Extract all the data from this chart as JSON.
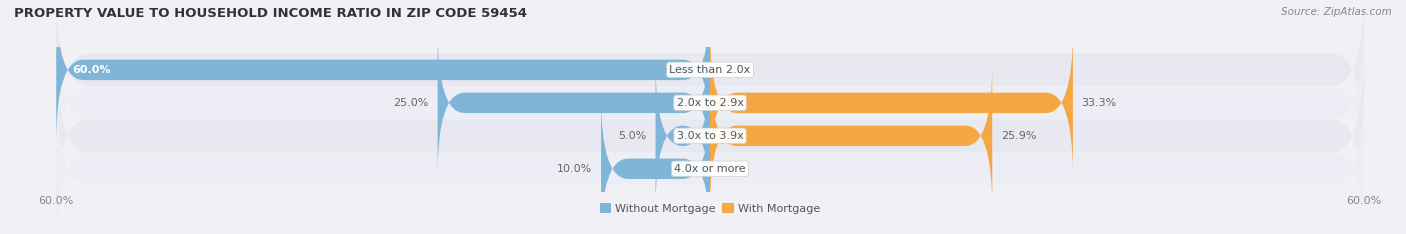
{
  "title": "PROPERTY VALUE TO HOUSEHOLD INCOME RATIO IN ZIP CODE 59454",
  "source": "Source: ZipAtlas.com",
  "categories": [
    "Less than 2.0x",
    "2.0x to 2.9x",
    "3.0x to 3.9x",
    "4.0x or more"
  ],
  "without_mortgage": [
    60.0,
    25.0,
    5.0,
    10.0
  ],
  "with_mortgage": [
    0.0,
    33.3,
    25.9,
    0.0
  ],
  "color_without": "#7eb5d8",
  "color_with": "#f5a742",
  "bar_height": 0.62,
  "xlim": [
    -60,
    60
  ],
  "xticklabels_left": "60.0%",
  "xticklabels_right": "60.0%",
  "bg_color": "#f0f0f5",
  "row_color_odd": "#e8e8f0",
  "row_color_even": "#ededf5",
  "title_fontsize": 9.5,
  "source_fontsize": 7.5,
  "label_fontsize": 8,
  "category_fontsize": 8,
  "legend_fontsize": 8,
  "tick_fontsize": 8
}
